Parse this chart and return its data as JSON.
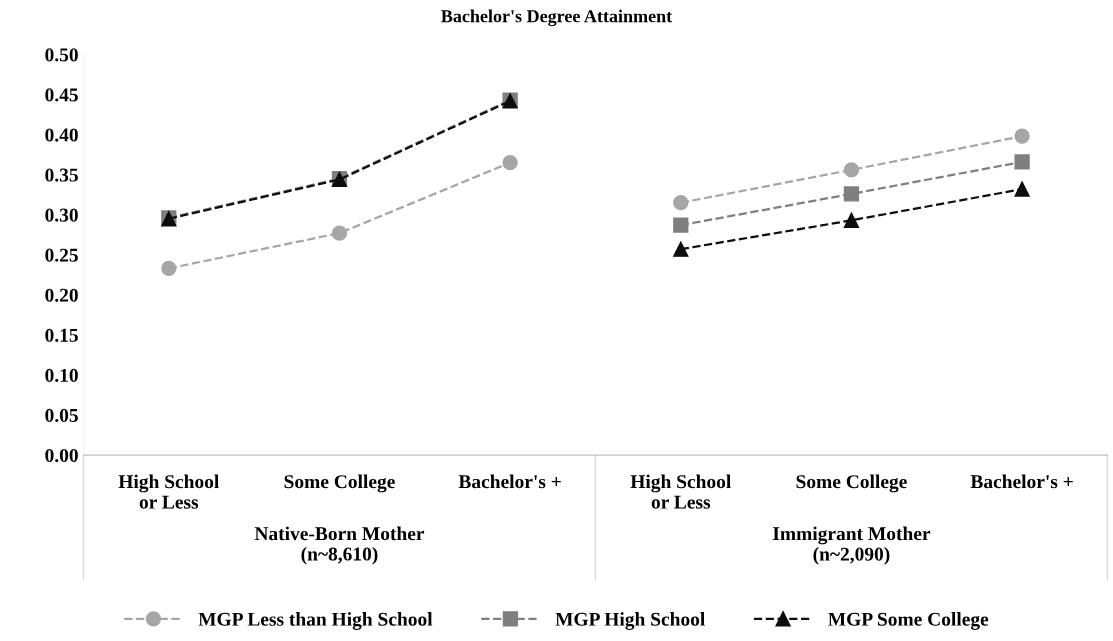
{
  "chart_data": [
    {
      "type": "line",
      "title": "Bachelor's Degree Attainment",
      "xlabel": "Native-Born Mother\n(n~8,610)",
      "categories": [
        "High School\nor Less",
        "Some College",
        "Bachelor's +"
      ],
      "ylim": [
        0,
        0.5
      ],
      "yticks": [
        {
          "value": 0,
          "label": "0.00"
        },
        {
          "value": 0.05,
          "label": "0.05"
        },
        {
          "value": 0.1,
          "label": "0.10"
        },
        {
          "value": 0.15,
          "label": "0.15"
        },
        {
          "value": 0.2,
          "label": "0.20"
        },
        {
          "value": 0.25,
          "label": "0.25"
        },
        {
          "value": 0.3,
          "label": "0.30"
        },
        {
          "value": 0.35,
          "label": "0.35"
        },
        {
          "value": 0.4,
          "label": "0.40"
        },
        {
          "value": 0.45,
          "label": "0.45"
        },
        {
          "value": 0.5,
          "label": "0.50"
        }
      ],
      "grid": false,
      "legend": "bottom",
      "line_style": "dashed",
      "series": [
        {
          "name": "MGP Less than High School",
          "color": "#a6a6a6",
          "marker": "circle",
          "values": [
            0.233,
            0.277,
            0.365
          ]
        },
        {
          "name": "MGP High School",
          "color": "#7f7f7f",
          "marker": "square",
          "values": [
            0.296,
            0.345,
            0.443
          ]
        },
        {
          "name": "MGP Some College",
          "color": "#0d0d0d",
          "marker": "triangle",
          "values": [
            0.295,
            0.344,
            0.442
          ]
        }
      ]
    },
    {
      "type": "line",
      "xlabel": "Immigrant Mother\n(n~2,090)",
      "categories": [
        "High School\nor Less",
        "Some College",
        "Bachelor's +"
      ],
      "ylim": [
        0,
        0.5
      ],
      "tick_labels": "x",
      "grid": false,
      "line_style": "dashed",
      "series": [
        {
          "color": "#a6a6a6",
          "marker": "circle",
          "values": [
            0.315,
            0.356,
            0.398
          ]
        },
        {
          "color": "#7f7f7f",
          "marker": "square",
          "values": [
            0.287,
            0.326,
            0.366
          ]
        },
        {
          "color": "#0d0d0d",
          "marker": "triangle",
          "values": [
            0.257,
            0.293,
            0.332
          ]
        }
      ]
    }
  ]
}
